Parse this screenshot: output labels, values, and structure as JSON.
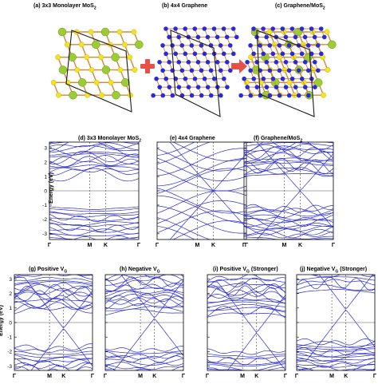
{
  "structure_titles": {
    "a": "(a) 3x3 Monolayer MoS",
    "b": "(b) 4x4 Graphene",
    "c": "(c) Graphene/MoS"
  },
  "subscript_two": "2",
  "gate_subscript": "G",
  "panel_titles": {
    "d": "(d) 3x3 Monolayer MoS",
    "e": "(e) 4x4 Graphene",
    "f": "(f) Graphene/MoS",
    "g": "(g) Positive V",
    "h": "(h) Negative V",
    "i": "(i) Positive V",
    "j": "(j) Negative V"
  },
  "stronger_suffix": " (Stronger)",
  "y_axis_label": "Energy (eV)",
  "k_labels": [
    "Γ",
    "M",
    "K",
    "Γ"
  ],
  "top_ticks": [
    "-3",
    "-2",
    "-1",
    "0",
    "1",
    "2",
    "3"
  ],
  "bottom_ticks": [
    "-3",
    "-2",
    "-1",
    "0",
    "1",
    "2",
    "3"
  ],
  "colors": {
    "band": "#2b2bd6",
    "mo_atom": "#9acd32",
    "s_atom": "#f2e422",
    "c_atom": "#2a2ad8",
    "bond": "#d4883a",
    "arrow": "#e8504a"
  },
  "chart_data": [
    {
      "type": "line",
      "panel": "d",
      "ylabel": "Energy (eV)",
      "ylim": [
        -3.4,
        3.4
      ],
      "x": [
        "Γ",
        "M",
        "K",
        "Γ"
      ]
    },
    {
      "type": "line",
      "panel": "e",
      "ylim": [
        -3.4,
        3.4
      ],
      "x": [
        "Γ",
        "M",
        "K",
        "Γ"
      ]
    },
    {
      "type": "line",
      "panel": "f",
      "ylim": [
        -3.4,
        3.4
      ],
      "x": [
        "Γ",
        "M",
        "K",
        "Γ"
      ]
    },
    {
      "type": "line",
      "panel": "g",
      "ylabel": "Energy (eV)",
      "ylim": [
        -3.3,
        3.3
      ],
      "x": [
        "Γ",
        "M",
        "K",
        "Γ"
      ]
    },
    {
      "type": "line",
      "panel": "h",
      "ylim": [
        -3.3,
        3.3
      ],
      "x": [
        "Γ",
        "M",
        "K",
        "Γ"
      ]
    },
    {
      "type": "line",
      "panel": "i",
      "ylim": [
        -3.3,
        3.3
      ],
      "x": [
        "Γ",
        "M",
        "K",
        "Γ"
      ]
    },
    {
      "type": "line",
      "panel": "j",
      "ylim": [
        -3.3,
        3.3
      ],
      "x": [
        "Γ",
        "M",
        "K",
        "Γ"
      ]
    }
  ]
}
